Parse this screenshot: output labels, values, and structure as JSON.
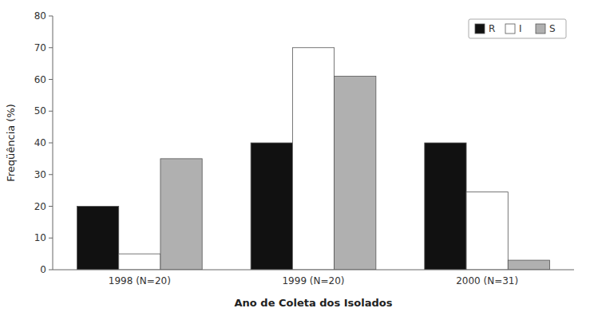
{
  "chart_data": {
    "type": "bar",
    "categories": [
      "1998 (N=20)",
      "1999 (N=20)",
      "2000 (N=31)"
    ],
    "series": [
      {
        "name": "R",
        "color": "#111111",
        "values": [
          20,
          40,
          40
        ]
      },
      {
        "name": "I",
        "color": "#ffffff",
        "values": [
          5,
          70,
          24.5
        ]
      },
      {
        "name": "S",
        "color": "#b0b0b0",
        "values": [
          35,
          61,
          3
        ]
      }
    ],
    "xlabel": "Ano de Coleta dos Isolados",
    "ylabel": "Freqüência (%)",
    "ylim": [
      0,
      80
    ],
    "yticks": [
      0,
      10,
      20,
      30,
      40,
      50,
      60,
      70,
      80
    ],
    "grid": false,
    "legend": "upper right"
  }
}
